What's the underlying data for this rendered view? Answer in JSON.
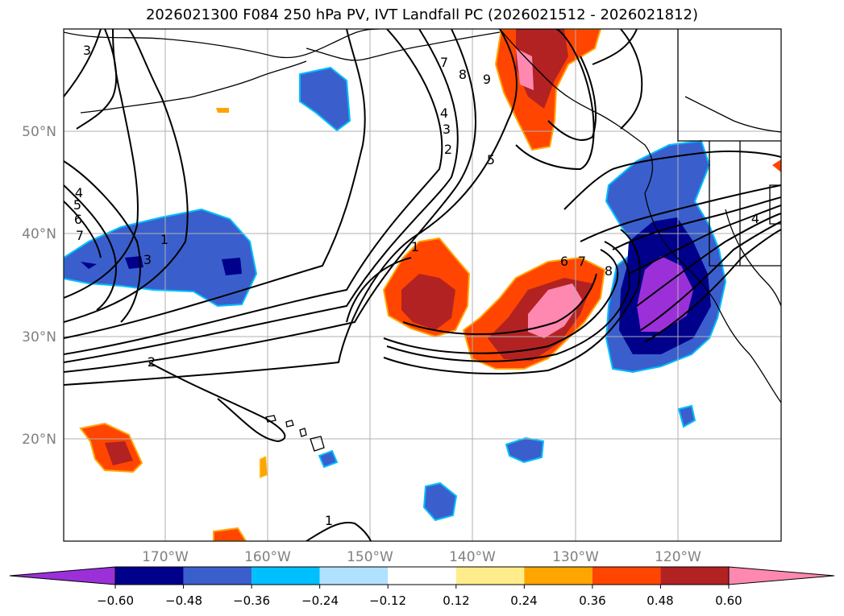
{
  "title": "2026021300 F084 250 hPa PV, IVT Landfall PC (2026021512 - 2026021812)",
  "lat_labels": [
    "50°N",
    "40°N",
    "30°N",
    "20°N"
  ],
  "lon_labels": [
    "170°W",
    "160°W",
    "150°W",
    "140°W",
    "130°W",
    "120°W"
  ],
  "colorbar": {
    "colors": [
      "#9b30d9",
      "#00008b",
      "#3a5fcd",
      "#00bfff",
      "#b0e2ff",
      "#ffffff",
      "#ffec8b",
      "#ffa500",
      "#ff4500",
      "#b22222",
      "#ff88b0"
    ],
    "tick_labels": [
      "−0.60",
      "−0.48",
      "−0.36",
      "−0.24",
      "−0.12",
      "0.12",
      "0.24",
      "0.36",
      "0.48",
      "0.60"
    ]
  },
  "contour_labels": [
    "3",
    "7",
    "8",
    "9",
    "4",
    "3",
    "2",
    "5",
    "1",
    "6",
    "7",
    "8",
    "4",
    "5",
    "6",
    "7",
    "3",
    "1",
    "2",
    "1",
    "4"
  ]
}
